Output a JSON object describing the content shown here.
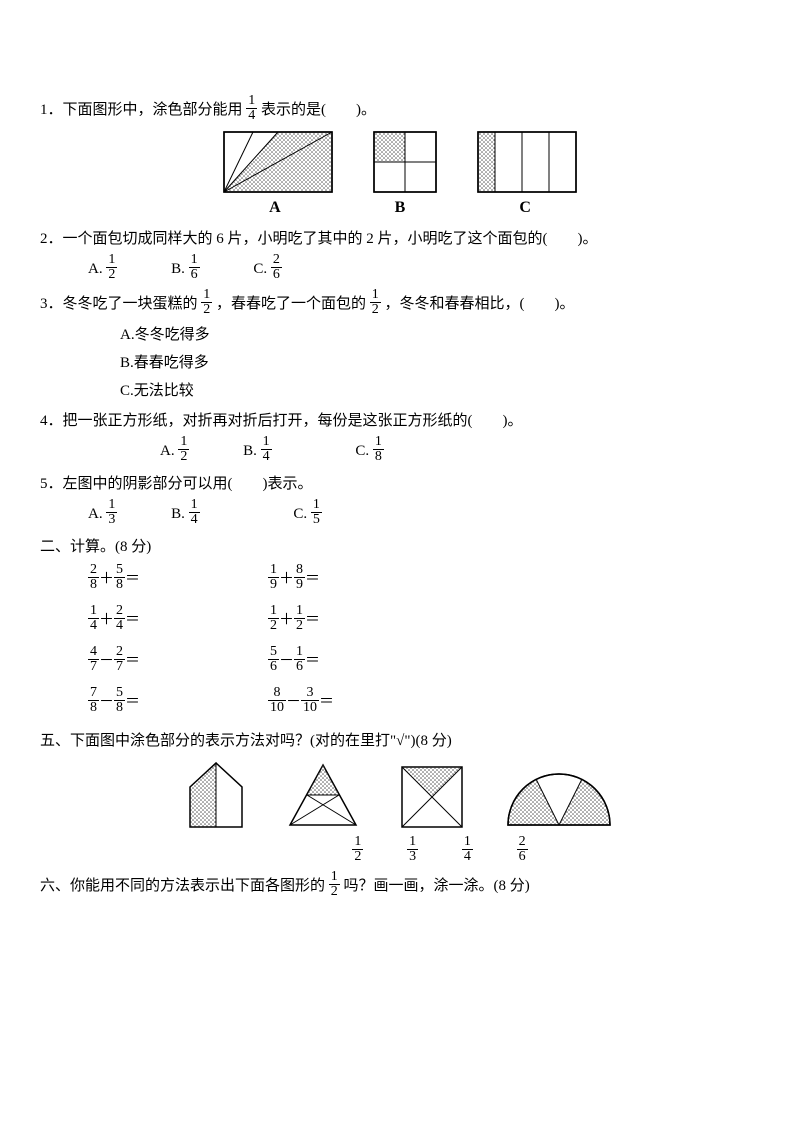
{
  "q1": {
    "text_a": "1．下面图形中，涂色部分能用",
    "frac": {
      "n": "1",
      "d": "4"
    },
    "text_b": "表示的是(　　)。",
    "labels": [
      "A",
      "B",
      "C"
    ]
  },
  "q2": {
    "text": "2．一个面包切成同样大的 6 片，小明吃了其中的 2 片，小明吃了这个面包的(　　)。",
    "opts": {
      "a": {
        "l": "A.",
        "n": "1",
        "d": "2"
      },
      "b": {
        "l": "B.",
        "n": "1",
        "d": "6"
      },
      "c": {
        "l": "C.",
        "n": "2",
        "d": "6"
      }
    }
  },
  "q3": {
    "text_a": "3．冬冬吃了一块蛋糕的",
    "f1": {
      "n": "1",
      "d": "2"
    },
    "text_b": "，春春吃了一个面包的",
    "f2": {
      "n": "1",
      "d": "2"
    },
    "text_c": "，冬冬和春春相比，(　　)。",
    "opts": {
      "a": "A.冬冬吃得多",
      "b": "B.春春吃得多",
      "c": "C.无法比较"
    }
  },
  "q4": {
    "text": "4．把一张正方形纸，对折再对折后打开，每份是这张正方形纸的(　　)。",
    "opts": {
      "a": {
        "l": "A.",
        "n": "1",
        "d": "2"
      },
      "b": {
        "l": "B.",
        "n": "1",
        "d": "4"
      },
      "c": {
        "l": "C.",
        "n": "1",
        "d": "8"
      }
    }
  },
  "q5": {
    "text": "5．左图中的阴影部分可以用(　　)表示。",
    "opts": {
      "a": {
        "l": "A.",
        "n": "1",
        "d": "3"
      },
      "b": {
        "l": "B.",
        "n": "1",
        "d": "4"
      },
      "c": {
        "l": "C.",
        "n": "1",
        "d": "5"
      }
    }
  },
  "sec2": {
    "title": "二、计算。(8 分)",
    "rows": [
      [
        {
          "n1": "2",
          "d1": "8",
          "op": "＋",
          "n2": "5",
          "d2": "8"
        },
        {
          "n1": "1",
          "d1": "9",
          "op": "＋",
          "n2": "8",
          "d2": "9"
        }
      ],
      [
        {
          "n1": "1",
          "d1": "4",
          "op": "＋",
          "n2": "2",
          "d2": "4"
        },
        {
          "n1": "1",
          "d1": "2",
          "op": "＋",
          "n2": "1",
          "d2": "2"
        }
      ],
      [
        {
          "n1": "4",
          "d1": "7",
          "op": "－",
          "n2": "2",
          "d2": "7"
        },
        {
          "n1": "5",
          "d1": "6",
          "op": "－",
          "n2": "1",
          "d2": "6"
        }
      ],
      [
        {
          "n1": "7",
          "d1": "8",
          "op": "－",
          "n2": "5",
          "d2": "8"
        },
        {
          "n1": "8",
          "d1": "10",
          "op": "－",
          "n2": "3",
          "d2": "10"
        }
      ]
    ],
    "eq": "＝"
  },
  "sec5": {
    "title": "五、下面图中涂色部分的表示方法对吗？(对的在里打\"√\")(8 分)",
    "labels": [
      {
        "n": "1",
        "d": "2"
      },
      {
        "n": "1",
        "d": "3"
      },
      {
        "n": "1",
        "d": "4"
      },
      {
        "n": "2",
        "d": "6"
      }
    ]
  },
  "sec6": {
    "text_a": "六、你能用不同的方法表示出下面各图形的",
    "frac": {
      "n": "1",
      "d": "2"
    },
    "text_b": "吗？画一画，涂一涂。(8 分)"
  },
  "style": {
    "stroke": "#000",
    "dot_color": "#444"
  }
}
